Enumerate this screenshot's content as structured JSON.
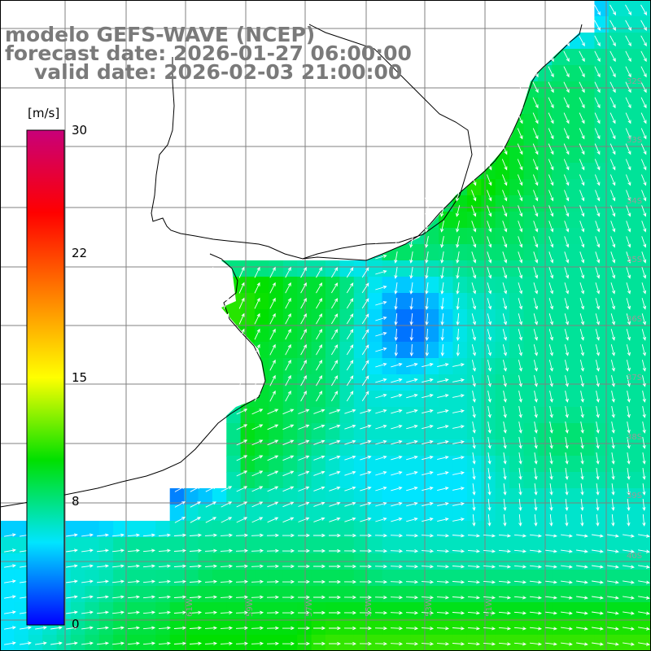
{
  "title": {
    "line1": "modelo GEFS-WAVE (NCEP)",
    "line2": "forecast date: 2026-01-27 06:00:00",
    "line3": "valid date: 2026-02-03 21:00:00"
  },
  "colorbar": {
    "unit": "[m/s]",
    "ticks": [
      "30",
      "22",
      "15",
      "8",
      "0"
    ],
    "min": 0,
    "max": 30,
    "colors": [
      "#0000ff",
      "#00e5ff",
      "#00e000",
      "#ffff00",
      "#ff8000",
      "#ff0000",
      "#c8007a"
    ]
  },
  "lat_labels": [
    "32S",
    "33S",
    "34S",
    "35S",
    "36S",
    "37S",
    "38S",
    "39S",
    "40S"
  ],
  "lon_labels": [
    "61W",
    "59W",
    "57W",
    "55W",
    "53W",
    "51W"
  ],
  "colors": {
    "grid": "#808080",
    "land": "#ffffff",
    "coast": "#000000",
    "arrow": "#ffffff"
  },
  "field": {
    "parameter": "wind speed",
    "units": "m/s",
    "cols": 23,
    "rows": 20,
    "speed_rows": [
      [
        0,
        0,
        0,
        0,
        0,
        0,
        0,
        0,
        0,
        0,
        0,
        0,
        0,
        0,
        0,
        0,
        0,
        0,
        0,
        0,
        0,
        6,
        6
      ],
      [
        0,
        0,
        0,
        0,
        0,
        0,
        0,
        0,
        0,
        0,
        0,
        0,
        0,
        0,
        0,
        0,
        0,
        0,
        0,
        7,
        7,
        7,
        7
      ],
      [
        0,
        0,
        0,
        0,
        0,
        0,
        0,
        0,
        0,
        0,
        0,
        0,
        0,
        0,
        0,
        0,
        0,
        0,
        8,
        8,
        8,
        7,
        7
      ],
      [
        0,
        0,
        0,
        0,
        0,
        0,
        0,
        0,
        0,
        0,
        0,
        0,
        0,
        0,
        0,
        0,
        0,
        9,
        9,
        8,
        8,
        7,
        7
      ],
      [
        0,
        0,
        0,
        0,
        0,
        0,
        0,
        0,
        0,
        0,
        0,
        0,
        0,
        0,
        0,
        0,
        0,
        10,
        9,
        8,
        8,
        7,
        7
      ],
      [
        0,
        0,
        0,
        0,
        0,
        0,
        0,
        0,
        0,
        0,
        0,
        0,
        0,
        0,
        0,
        0,
        11,
        10,
        9,
        8,
        7,
        7,
        7
      ],
      [
        0,
        0,
        0,
        0,
        0,
        0,
        0,
        0,
        0,
        0,
        0,
        0,
        0,
        0,
        0,
        10,
        10,
        9,
        8,
        8,
        7,
        7,
        7
      ],
      [
        0,
        0,
        0,
        0,
        0,
        0,
        0,
        0,
        0,
        0,
        0,
        0,
        0,
        9,
        9,
        8,
        8,
        8,
        8,
        7,
        7,
        7,
        7
      ],
      [
        0,
        0,
        0,
        0,
        0,
        0,
        0,
        10,
        10,
        10,
        9,
        9,
        7,
        5,
        5,
        6,
        7,
        7,
        7,
        7,
        7,
        7,
        7
      ],
      [
        0,
        0,
        0,
        0,
        0,
        0,
        0,
        11,
        11,
        10,
        9,
        9,
        7,
        4,
        2,
        4,
        6,
        6,
        7,
        7,
        7,
        7,
        7
      ],
      [
        0,
        0,
        0,
        0,
        0,
        0,
        0,
        10,
        10,
        9,
        9,
        8,
        6,
        4,
        2,
        4,
        6,
        6,
        7,
        7,
        7,
        7,
        7
      ],
      [
        0,
        0,
        0,
        0,
        0,
        0,
        0,
        0,
        9,
        9,
        8,
        8,
        6,
        5,
        5,
        6,
        6,
        7,
        7,
        7,
        7,
        7,
        7
      ],
      [
        0,
        0,
        0,
        0,
        0,
        0,
        0,
        0,
        9,
        9,
        8,
        8,
        6,
        6,
        6,
        6,
        6,
        7,
        7,
        7,
        7,
        7,
        7
      ],
      [
        0,
        0,
        0,
        0,
        0,
        0,
        0,
        0,
        10,
        9,
        8,
        7,
        6,
        6,
        6,
        6,
        6,
        7,
        7,
        8,
        8,
        7,
        7
      ],
      [
        0,
        0,
        0,
        0,
        0,
        0,
        0,
        0,
        9,
        8,
        7,
        6,
        5,
        5,
        5,
        5,
        5,
        6,
        7,
        7,
        7,
        7,
        7
      ],
      [
        0,
        0,
        0,
        0,
        0,
        0,
        5,
        6,
        6,
        6,
        6,
        6,
        6,
        5,
        5,
        5,
        5,
        6,
        6,
        6,
        6,
        6,
        6
      ],
      [
        6,
        6,
        6,
        6,
        7,
        7,
        7,
        7,
        7,
        7,
        7,
        7,
        7,
        6,
        6,
        6,
        6,
        6,
        6,
        6,
        6,
        6,
        6
      ],
      [
        5,
        5,
        6,
        6,
        7,
        7,
        7,
        8,
        8,
        8,
        8,
        8,
        8,
        7,
        7,
        7,
        7,
        7,
        7,
        7,
        7,
        7,
        7
      ],
      [
        5,
        5,
        6,
        7,
        8,
        8,
        9,
        9,
        9,
        9,
        9,
        9,
        9,
        9,
        9,
        9,
        9,
        9,
        9,
        9,
        9,
        9,
        9
      ],
      [
        5,
        6,
        7,
        8,
        9,
        9,
        10,
        10,
        10,
        10,
        10,
        11,
        11,
        11,
        11,
        11,
        11,
        11,
        11,
        11,
        11,
        11,
        11
      ]
    ]
  }
}
